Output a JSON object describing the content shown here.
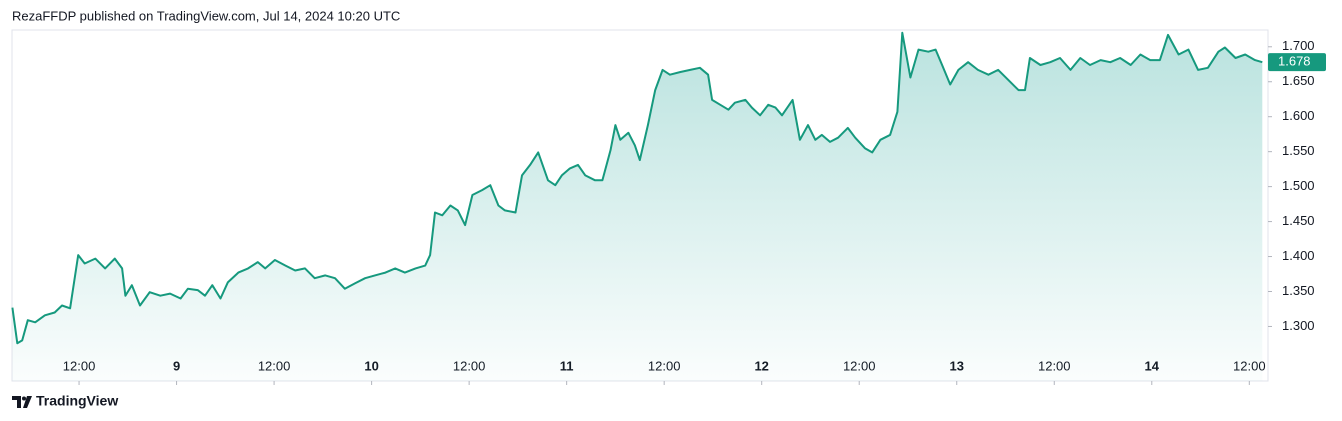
{
  "header": "RezaFFDP published on TradingView.com, Jul 14, 2024 10:20 UTC",
  "footer": "TradingView",
  "chart_data": {
    "type": "area",
    "last_price": 1.678,
    "x": [
      3.8,
      4.4,
      5.0,
      5.7,
      6.6,
      7.8,
      9.0,
      9.9,
      10.9,
      11.9,
      12.7,
      14.0,
      15.2,
      16.4,
      17.3,
      17.7,
      18.5,
      19.5,
      20.7,
      22.0,
      23.2,
      24.5,
      25.4,
      26.6,
      27.5,
      28.4,
      29.4,
      30.3,
      31.6,
      32.8,
      34.0,
      34.9,
      36.1,
      37.4,
      38.6,
      39.8,
      41.0,
      42.3,
      43.5,
      44.7,
      46.0,
      47.2,
      48.4,
      49.7,
      50.9,
      52.1,
      53.4,
      54.6,
      55.2,
      55.8,
      56.7,
      57.7,
      58.6,
      59.5,
      60.4,
      61.6,
      62.6,
      63.6,
      64.4,
      65.7,
      66.5,
      67.5,
      68.5,
      69.7,
      70.6,
      71.4,
      72.4,
      73.4,
      74.3,
      75.5,
      76.4,
      77.4,
      78.0,
      78.6,
      79.6,
      80.4,
      81.0,
      82.0,
      82.9,
      83.8,
      84.7,
      86.0,
      87.2,
      88.4,
      89.4,
      89.9,
      90.9,
      91.9,
      92.7,
      94.0,
      94.8,
      95.8,
      96.8,
      97.7,
      98.5,
      99.8,
      100.7,
      101.7,
      102.6,
      103.4,
      104.4,
      105.4,
      106.6,
      107.5,
      108.7,
      109.6,
      110.6,
      111.8,
      112.7,
      113.3,
      114.3,
      115.3,
      116.5,
      117.4,
      118.2,
      119.2,
      120.2,
      121.4,
      122.6,
      123.9,
      125.1,
      126.3,
      127.6,
      128.4,
      129.0,
      130.3,
      131.5,
      132.7,
      134.0,
      135.2,
      136.4,
      137.7,
      138.9,
      140.1,
      141.4,
      142.6,
      143.8,
      145.0,
      146.0,
      147.3,
      148.5,
      149.7,
      150.9,
      152.2,
      153.0,
      154.3,
      155.5,
      156.7,
      157.6
    ],
    "series": [
      {
        "color": "#16997e",
        "values": [
          1.327,
          1.276,
          1.28,
          1.309,
          1.306,
          1.316,
          1.32,
          1.33,
          1.326,
          1.402,
          1.39,
          1.397,
          1.383,
          1.397,
          1.383,
          1.344,
          1.359,
          1.33,
          1.349,
          1.344,
          1.347,
          1.34,
          1.354,
          1.352,
          1.344,
          1.359,
          1.34,
          1.363,
          1.377,
          1.383,
          1.392,
          1.383,
          1.395,
          1.387,
          1.38,
          1.383,
          1.369,
          1.373,
          1.369,
          1.354,
          1.362,
          1.369,
          1.373,
          1.377,
          1.383,
          1.377,
          1.383,
          1.387,
          1.402,
          1.463,
          1.459,
          1.473,
          1.466,
          1.445,
          1.488,
          1.495,
          1.502,
          1.473,
          1.466,
          1.463,
          1.516,
          1.531,
          1.549,
          1.509,
          1.502,
          1.516,
          1.526,
          1.531,
          1.516,
          1.509,
          1.509,
          1.552,
          1.588,
          1.567,
          1.577,
          1.559,
          1.538,
          1.588,
          1.638,
          1.667,
          1.66,
          1.664,
          1.667,
          1.67,
          1.66,
          1.624,
          1.617,
          1.61,
          1.62,
          1.624,
          1.613,
          1.602,
          1.617,
          1.613,
          1.602,
          1.624,
          1.567,
          1.588,
          1.567,
          1.574,
          1.564,
          1.57,
          1.584,
          1.57,
          1.555,
          1.549,
          1.567,
          1.574,
          1.607,
          1.72,
          1.656,
          1.696,
          1.693,
          1.696,
          1.674,
          1.646,
          1.667,
          1.678,
          1.667,
          1.66,
          1.667,
          1.653,
          1.638,
          1.638,
          1.684,
          1.674,
          1.678,
          1.684,
          1.667,
          1.684,
          1.674,
          1.681,
          1.678,
          1.684,
          1.674,
          1.689,
          1.681,
          1.681,
          1.717,
          1.689,
          1.696,
          1.667,
          1.67,
          1.693,
          1.699,
          1.684,
          1.689,
          1.681,
          1.678
        ]
      }
    ],
    "xlim": [
      3.75,
      158.3
    ],
    "xticks": [
      {
        "value": 12,
        "label": "12:00"
      },
      {
        "value": 24,
        "label": "9"
      },
      {
        "value": 36,
        "label": "12:00"
      },
      {
        "value": 48,
        "label": "10"
      },
      {
        "value": 60,
        "label": "12:00"
      },
      {
        "value": 72,
        "label": "11"
      },
      {
        "value": 84,
        "label": "12:00"
      },
      {
        "value": 96,
        "label": "12"
      },
      {
        "value": 108,
        "label": "12:00"
      },
      {
        "value": 120,
        "label": "13"
      },
      {
        "value": 132,
        "label": "12:00"
      },
      {
        "value": 144,
        "label": "14"
      },
      {
        "value": 156,
        "label": "12:00"
      }
    ],
    "ylim": [
      1.222,
      1.724
    ],
    "yticks": [
      {
        "value": 1.3,
        "label": "1.300"
      },
      {
        "value": 1.35,
        "label": "1.350"
      },
      {
        "value": 1.4,
        "label": "1.400"
      },
      {
        "value": 1.45,
        "label": "1.450"
      },
      {
        "value": 1.5,
        "label": "1.500"
      },
      {
        "value": 1.55,
        "label": "1.550"
      },
      {
        "value": 1.6,
        "label": "1.600"
      },
      {
        "value": 1.65,
        "label": "1.650"
      },
      {
        "value": 1.7,
        "label": "1.700"
      }
    ]
  }
}
